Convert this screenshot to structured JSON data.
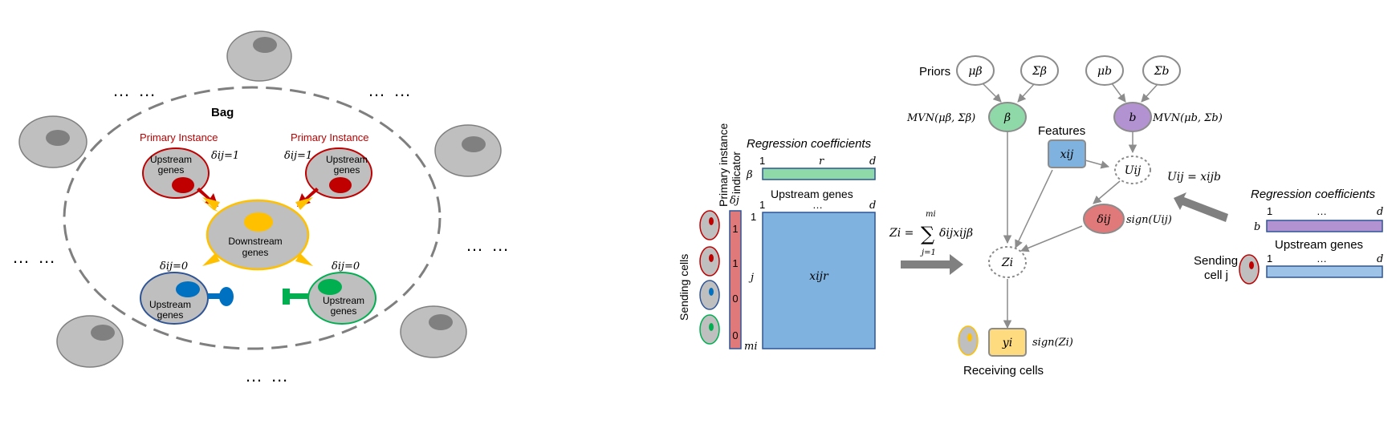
{
  "left_panel": {
    "bag_label": "Bag",
    "ellipsis": "… …",
    "primary_instance_left": "Primary Instance",
    "primary_instance_right": "Primary Instance",
    "delta_one": "δij=1",
    "delta_zero": "δij=0",
    "upstream_genes": "Upstream genes",
    "downstream_genes": "Downstream genes",
    "colors": {
      "red": "#c00000",
      "blue": "#0070c0",
      "green": "#00b050",
      "gold": "#ffc000",
      "gray": "#bfbfbf"
    }
  },
  "middle_panel": {
    "primary_indicator_label_1": "Primary instance",
    "primary_indicator_label_2": "indicator",
    "delta_j": "δj",
    "sending_cells": "Sending cells",
    "indicator_values": [
      "1",
      "1",
      "0",
      "0"
    ],
    "regression_coefficients": "Regression coefficients",
    "beta": "β",
    "idx_1": "1",
    "idx_r": "r",
    "idx_d": "d",
    "upstream_genes": "Upstream genes",
    "idx_j": "j",
    "idx_mi": "mi",
    "hdots": "…",
    "matrix_label": "xijr",
    "colors": {
      "beta_bar": "#8fd8a8",
      "matrix": "#7fb2de",
      "indicator": "#e07a7a"
    }
  },
  "right_panel": {
    "priors": "Priors",
    "mu_beta": "μβ",
    "sigma_beta": "Σβ",
    "mu_b": "μb",
    "sigma_b": "Σb",
    "beta": "β",
    "b": "b",
    "mvn_beta": "MVN(μβ, Σβ)",
    "mvn_b": "MVN(μb, Σb)",
    "features": "Features",
    "x_ij": "xij",
    "u_ij": "Uij",
    "delta_ij": "δij",
    "sign_u": "sign(Uij)",
    "z_i": "Zi",
    "z_formula_lhs": "Zi =",
    "z_formula_sum": "∑",
    "z_formula_top": "mi",
    "z_formula_bottom": "j=1",
    "z_formula_rhs": "δijxijβ",
    "y_i": "yi",
    "sign_z": "sign(Zi)",
    "receiving_cells": "Receiving cells",
    "u_formula": "Uij = xijb",
    "regression_coefficients": "Regression coefficients",
    "b_label": "b",
    "idx_1": "1",
    "idx_d": "d",
    "hdots": "…",
    "upstream_genes": "Upstream genes",
    "sending_cell": "Sending",
    "sending_cell_j": "cell j",
    "colors": {
      "beta_node": "#8fd8a8",
      "b_node": "#b392d1",
      "x_node": "#7fb2de",
      "delta_node": "#e07a7a",
      "y_node": "#ffdb7f",
      "b_bar": "#b392d1",
      "upstream_bar": "#9dc3e6"
    }
  }
}
